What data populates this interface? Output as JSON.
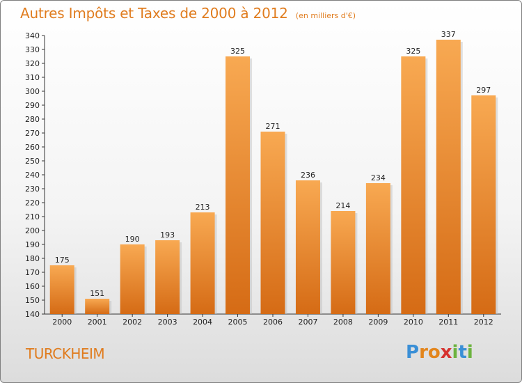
{
  "header": {
    "title": "Autres Impôts et Taxes de 2000 à 2012",
    "subtitle": "(en milliers d'€)"
  },
  "footer": {
    "city": "TURCKHEIM",
    "brand": "Proxiti"
  },
  "colors": {
    "accent": "#e07c1e",
    "bar_light": "#f7a650",
    "bar_dark": "#d46a14"
  },
  "chart_data": {
    "type": "bar",
    "title": "Autres Impôts et Taxes de 2000 à 2012",
    "subtitle": "(en milliers d'€)",
    "categories": [
      "2000",
      "2001",
      "2002",
      "2003",
      "2004",
      "2005",
      "2006",
      "2007",
      "2008",
      "2009",
      "2010",
      "2011",
      "2012"
    ],
    "values": [
      175,
      151,
      190,
      193,
      213,
      325,
      271,
      236,
      214,
      234,
      325,
      337,
      297
    ],
    "ylim": [
      140,
      340
    ],
    "yticks": [
      140,
      150,
      160,
      170,
      180,
      190,
      200,
      210,
      220,
      230,
      240,
      250,
      260,
      270,
      280,
      290,
      300,
      310,
      320,
      330,
      340
    ],
    "xlabel": "",
    "ylabel": "",
    "grid": false,
    "data_labels": true
  }
}
